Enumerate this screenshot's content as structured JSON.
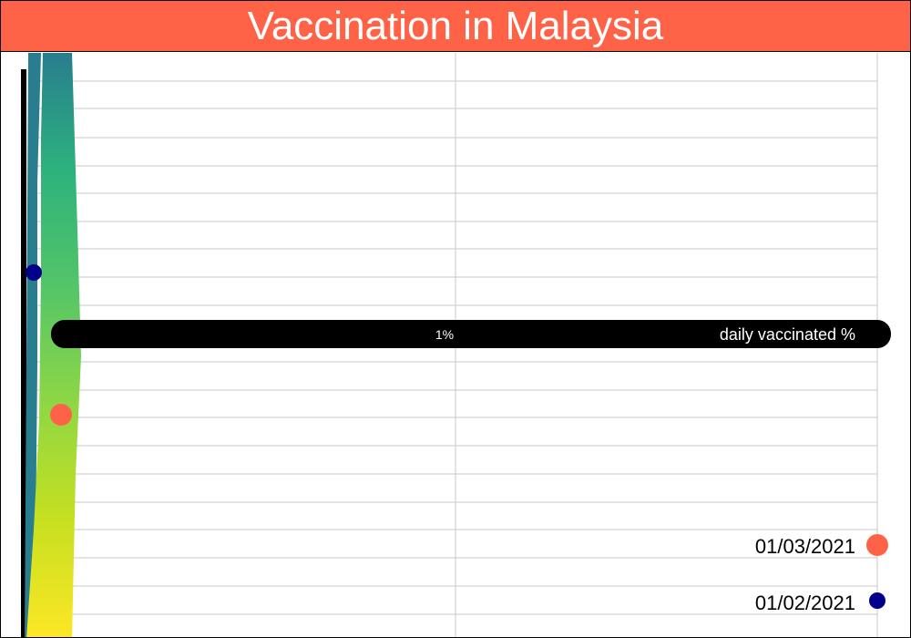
{
  "colors": {
    "title_background": "#ff6347",
    "title_text": "#ffffff",
    "bar": "#000000",
    "bar_text": "#ffffff",
    "marker_0301": "#ff6347",
    "marker_0201": "#00008b",
    "gradient": [
      "#287d8e",
      "#2db27d",
      "#54c568",
      "#8fd744",
      "#c7e020",
      "#fde725"
    ]
  },
  "chart_data": {
    "type": "scatter",
    "title": "Vaccination in Malaysia",
    "xlabel": "daily vaccinated %",
    "ylabel": "",
    "x_tick_labels": [
      "1%"
    ],
    "grid": true,
    "legend_position": "bottom-right",
    "series": [
      {
        "name": "01/03/2021",
        "color": "#ff6347"
      },
      {
        "name": "01/02/2021",
        "color": "#00008b"
      }
    ]
  }
}
